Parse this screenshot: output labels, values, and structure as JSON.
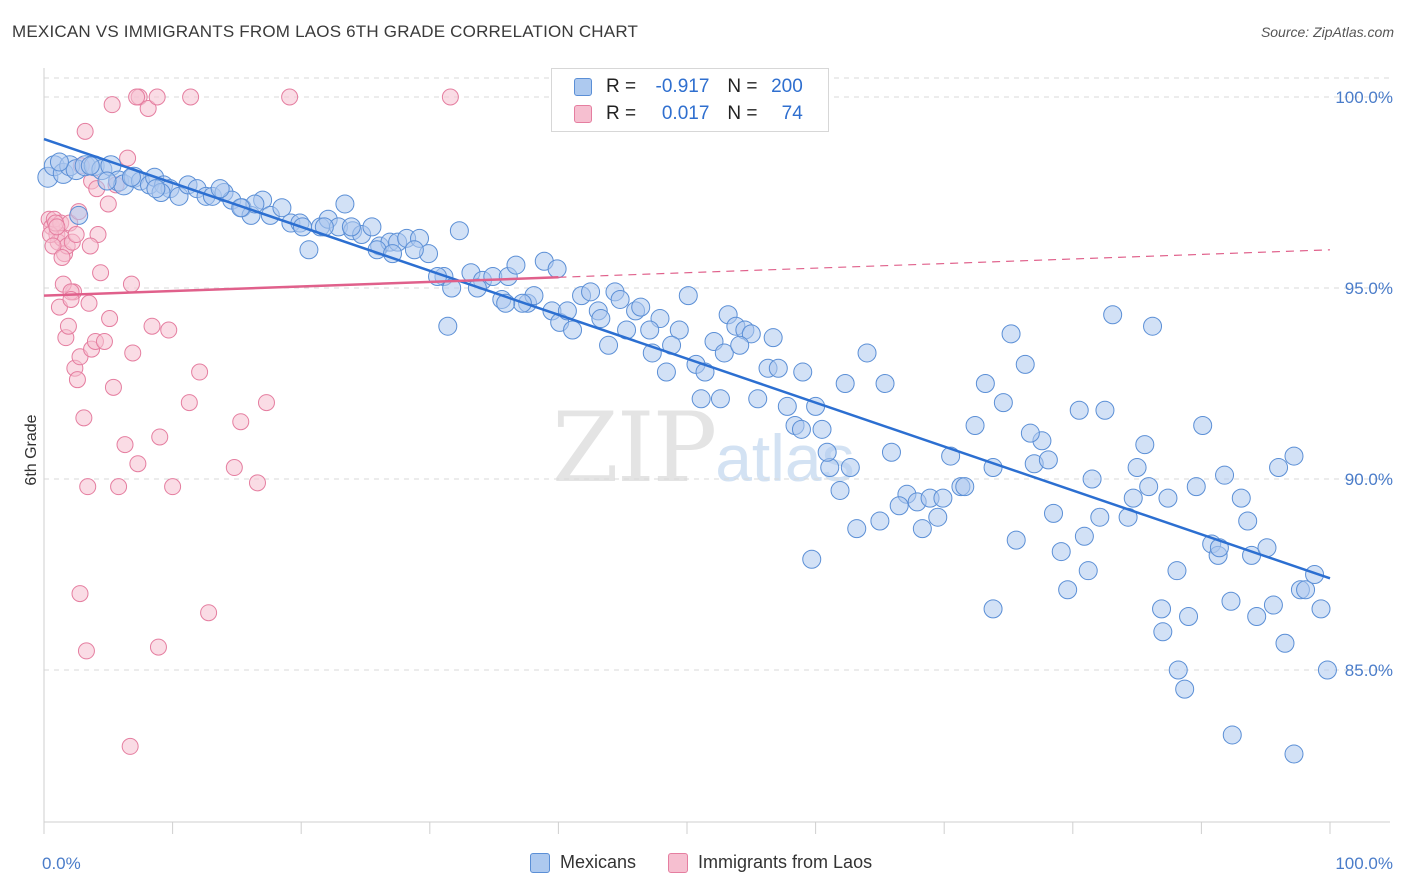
{
  "title": "MEXICAN VS IMMIGRANTS FROM LAOS 6TH GRADE CORRELATION CHART",
  "source": "Source: ZipAtlas.com",
  "watermark": {
    "zip": "ZIP",
    "atlas": "atlas"
  },
  "legend": {
    "r_label": "R =",
    "n_label": "N =",
    "rows": [
      {
        "r": "-0.917",
        "n": "200"
      },
      {
        "r": "0.017",
        "n": "74"
      }
    ]
  },
  "colors": {
    "blue_fill": "#adc9ef",
    "blue_stroke": "#5b8fd6",
    "blue_line": "#2c6fd1",
    "pink_fill": "#f6bfd0",
    "pink_stroke": "#e57ea0",
    "pink_line": "#e0608b",
    "axis_label": "#4a7cc9",
    "grid": "#d9d9d9"
  },
  "chart_data": {
    "type": "scatter",
    "title": "MEXICAN VS IMMIGRANTS FROM LAOS 6TH GRADE CORRELATION CHART",
    "xlabel": "",
    "ylabel": "6th Grade",
    "x_ticks": [
      "0.0%",
      "100.0%"
    ],
    "y_ticks": [
      "100.0%",
      "95.0%",
      "90.0%",
      "85.0%"
    ],
    "y_tick_values": [
      100,
      95,
      90,
      85
    ],
    "xlim": [
      0,
      100
    ],
    "ylim": [
      80.0,
      100.6
    ],
    "grid": true,
    "legend_position": "top-center",
    "series": [
      {
        "name": "Mexicans",
        "r": -0.917,
        "n": 200,
        "trend": {
          "x": [
            0,
            100
          ],
          "y": [
            98.9,
            87.4
          ]
        },
        "points": [
          [
            0.3,
            97.9
          ],
          [
            0.8,
            98.2
          ],
          [
            1.5,
            98.0
          ],
          [
            2.0,
            98.2
          ],
          [
            2.5,
            98.1
          ],
          [
            3.2,
            98.2
          ],
          [
            3.9,
            98.2
          ],
          [
            4.5,
            98.1
          ],
          [
            5.2,
            98.2
          ],
          [
            5.8,
            97.8
          ],
          [
            6.2,
            97.7
          ],
          [
            7.0,
            97.9
          ],
          [
            7.5,
            97.8
          ],
          [
            8.2,
            97.7
          ],
          [
            8.6,
            97.9
          ],
          [
            9.3,
            97.7
          ],
          [
            9.8,
            97.6
          ],
          [
            10.5,
            97.4
          ],
          [
            11.2,
            97.7
          ],
          [
            11.9,
            97.6
          ],
          [
            12.6,
            97.4
          ],
          [
            13.1,
            97.4
          ],
          [
            14.0,
            97.5
          ],
          [
            14.6,
            97.3
          ],
          [
            15.4,
            97.1
          ],
          [
            16.1,
            96.9
          ],
          [
            17.0,
            97.3
          ],
          [
            17.6,
            96.9
          ],
          [
            18.5,
            97.1
          ],
          [
            19.2,
            96.7
          ],
          [
            19.9,
            96.7
          ],
          [
            20.6,
            96.0
          ],
          [
            21.5,
            96.6
          ],
          [
            22.1,
            96.8
          ],
          [
            22.9,
            96.6
          ],
          [
            23.4,
            97.2
          ],
          [
            24.0,
            96.5
          ],
          [
            24.7,
            96.4
          ],
          [
            25.5,
            96.6
          ],
          [
            26.1,
            96.1
          ],
          [
            26.9,
            96.2
          ],
          [
            27.5,
            96.2
          ],
          [
            28.2,
            96.3
          ],
          [
            29.2,
            96.3
          ],
          [
            29.9,
            95.9
          ],
          [
            31.1,
            95.3
          ],
          [
            31.7,
            95.0
          ],
          [
            32.3,
            96.5
          ],
          [
            33.2,
            95.4
          ],
          [
            34.1,
            95.2
          ],
          [
            34.9,
            95.3
          ],
          [
            35.6,
            94.7
          ],
          [
            36.1,
            95.3
          ],
          [
            36.7,
            95.6
          ],
          [
            37.6,
            94.6
          ],
          [
            38.1,
            94.8
          ],
          [
            38.9,
            95.7
          ],
          [
            39.5,
            94.4
          ],
          [
            40.1,
            94.1
          ],
          [
            41.1,
            93.9
          ],
          [
            41.8,
            94.8
          ],
          [
            42.5,
            94.9
          ],
          [
            43.1,
            94.4
          ],
          [
            43.9,
            93.5
          ],
          [
            44.4,
            94.9
          ],
          [
            45.3,
            93.9
          ],
          [
            46.0,
            94.4
          ],
          [
            46.4,
            94.5
          ],
          [
            47.3,
            93.3
          ],
          [
            47.9,
            94.2
          ],
          [
            48.4,
            92.8
          ],
          [
            49.4,
            93.9
          ],
          [
            50.1,
            94.8
          ],
          [
            50.7,
            93.0
          ],
          [
            51.4,
            92.8
          ],
          [
            52.1,
            93.6
          ],
          [
            52.6,
            92.1
          ],
          [
            53.2,
            94.3
          ],
          [
            53.8,
            94.0
          ],
          [
            54.5,
            93.9
          ],
          [
            55.0,
            93.8
          ],
          [
            55.5,
            92.1
          ],
          [
            56.3,
            92.9
          ],
          [
            57.1,
            92.9
          ],
          [
            57.8,
            91.9
          ],
          [
            58.4,
            91.4
          ],
          [
            59.0,
            92.8
          ],
          [
            60.0,
            91.9
          ],
          [
            60.5,
            91.3
          ],
          [
            61.1,
            90.3
          ],
          [
            61.9,
            89.7
          ],
          [
            62.3,
            92.5
          ],
          [
            63.2,
            88.7
          ],
          [
            64.0,
            93.3
          ],
          [
            65.0,
            88.9
          ],
          [
            65.9,
            90.7
          ],
          [
            67.1,
            89.6
          ],
          [
            67.9,
            89.4
          ],
          [
            68.3,
            88.7
          ],
          [
            68.9,
            89.5
          ],
          [
            69.5,
            89.0
          ],
          [
            70.5,
            90.6
          ],
          [
            71.3,
            89.8
          ],
          [
            72.4,
            91.4
          ],
          [
            73.2,
            92.5
          ],
          [
            73.8,
            90.3
          ],
          [
            75.2,
            93.8
          ],
          [
            75.6,
            88.4
          ],
          [
            76.3,
            93.0
          ],
          [
            77.0,
            90.4
          ],
          [
            77.6,
            91.0
          ],
          [
            78.5,
            89.1
          ],
          [
            79.1,
            88.1
          ],
          [
            79.6,
            87.1
          ],
          [
            80.5,
            91.8
          ],
          [
            81.2,
            87.6
          ],
          [
            81.5,
            90.0
          ],
          [
            82.5,
            91.8
          ],
          [
            83.1,
            94.3
          ],
          [
            84.3,
            89.0
          ],
          [
            85.0,
            90.3
          ],
          [
            85.6,
            90.9
          ],
          [
            86.2,
            94.0
          ],
          [
            87.0,
            86.0
          ],
          [
            87.4,
            89.5
          ],
          [
            88.2,
            85.0
          ],
          [
            88.7,
            84.5
          ],
          [
            89.0,
            86.4
          ],
          [
            90.1,
            91.4
          ],
          [
            90.8,
            88.3
          ],
          [
            91.3,
            88.0
          ],
          [
            91.8,
            90.1
          ],
          [
            92.3,
            86.8
          ],
          [
            93.1,
            89.5
          ],
          [
            93.9,
            88.0
          ],
          [
            94.3,
            86.4
          ],
          [
            95.1,
            88.2
          ],
          [
            95.6,
            86.7
          ],
          [
            96.0,
            90.3
          ],
          [
            96.5,
            85.7
          ],
          [
            97.2,
            82.8
          ],
          [
            97.7,
            87.1
          ],
          [
            98.1,
            87.1
          ],
          [
            98.8,
            87.5
          ],
          [
            99.3,
            86.6
          ],
          [
            99.8,
            85.0
          ],
          [
            59.7,
            87.9
          ],
          [
            73.8,
            86.6
          ],
          [
            86.9,
            86.6
          ],
          [
            92.4,
            83.3
          ],
          [
            1.2,
            98.3
          ],
          [
            3.6,
            98.2
          ],
          [
            4.9,
            97.8
          ],
          [
            6.8,
            97.9
          ],
          [
            9.1,
            97.5
          ],
          [
            13.7,
            97.6
          ],
          [
            16.4,
            97.2
          ],
          [
            20.1,
            96.6
          ],
          [
            23.9,
            96.6
          ],
          [
            25.9,
            96.0
          ],
          [
            28.8,
            96.0
          ],
          [
            30.6,
            95.3
          ],
          [
            33.7,
            95.0
          ],
          [
            37.2,
            94.6
          ],
          [
            40.7,
            94.4
          ],
          [
            44.8,
            94.7
          ],
          [
            48.8,
            93.5
          ],
          [
            52.9,
            93.3
          ],
          [
            56.7,
            93.7
          ],
          [
            60.9,
            90.7
          ],
          [
            65.4,
            92.5
          ],
          [
            69.9,
            89.5
          ],
          [
            74.6,
            92.0
          ],
          [
            78.1,
            90.5
          ],
          [
            82.1,
            89.0
          ],
          [
            85.9,
            89.8
          ],
          [
            89.6,
            89.8
          ],
          [
            93.6,
            88.9
          ],
          [
            97.2,
            90.6
          ],
          [
            2.7,
            96.9
          ],
          [
            8.7,
            97.6
          ],
          [
            15.3,
            97.1
          ],
          [
            21.8,
            96.6
          ],
          [
            27.1,
            95.9
          ],
          [
            31.4,
            94.0
          ],
          [
            35.9,
            94.6
          ],
          [
            39.9,
            95.5
          ],
          [
            43.3,
            94.2
          ],
          [
            47.1,
            93.9
          ],
          [
            51.1,
            92.1
          ],
          [
            54.1,
            93.5
          ],
          [
            58.9,
            91.3
          ],
          [
            62.7,
            90.3
          ],
          [
            66.5,
            89.3
          ],
          [
            71.6,
            89.8
          ],
          [
            76.7,
            91.2
          ],
          [
            80.9,
            88.5
          ],
          [
            84.7,
            89.5
          ],
          [
            88.1,
            87.6
          ],
          [
            91.4,
            88.2
          ]
        ]
      },
      {
        "name": "Immigrants from Laos",
        "r": 0.017,
        "n": 74,
        "trend": {
          "x": [
            0,
            100
          ],
          "y": [
            94.8,
            96.0
          ]
        },
        "points": [
          [
            0.4,
            96.8
          ],
          [
            0.6,
            96.6
          ],
          [
            0.8,
            96.8
          ],
          [
            1.0,
            96.4
          ],
          [
            1.1,
            96.2
          ],
          [
            1.3,
            96.7
          ],
          [
            1.4,
            96.3
          ],
          [
            1.6,
            95.9
          ],
          [
            1.8,
            96.1
          ],
          [
            2.0,
            96.7
          ],
          [
            2.2,
            96.2
          ],
          [
            2.3,
            94.9
          ],
          [
            2.5,
            96.4
          ],
          [
            0.5,
            96.4
          ],
          [
            0.7,
            96.1
          ],
          [
            0.9,
            96.7
          ],
          [
            1.2,
            94.5
          ],
          [
            1.5,
            95.1
          ],
          [
            1.7,
            93.7
          ],
          [
            1.9,
            94.0
          ],
          [
            2.1,
            94.9
          ],
          [
            2.4,
            92.9
          ],
          [
            2.6,
            92.6
          ],
          [
            2.8,
            93.2
          ],
          [
            3.1,
            91.6
          ],
          [
            3.4,
            89.8
          ],
          [
            3.7,
            93.4
          ],
          [
            4.0,
            93.6
          ],
          [
            4.4,
            95.4
          ],
          [
            4.7,
            93.6
          ],
          [
            5.1,
            94.2
          ],
          [
            5.4,
            92.4
          ],
          [
            5.8,
            89.8
          ],
          [
            6.3,
            90.9
          ],
          [
            6.9,
            93.3
          ],
          [
            7.3,
            90.4
          ],
          [
            8.4,
            94.0
          ],
          [
            9.0,
            91.1
          ],
          [
            10.0,
            89.8
          ],
          [
            11.3,
            92.0
          ],
          [
            12.1,
            92.8
          ],
          [
            14.8,
            90.3
          ],
          [
            15.3,
            91.5
          ],
          [
            16.6,
            89.9
          ],
          [
            3.2,
            99.1
          ],
          [
            5.3,
            99.8
          ],
          [
            7.4,
            100.0
          ],
          [
            8.1,
            99.7
          ],
          [
            8.8,
            100.0
          ],
          [
            11.4,
            100.0
          ],
          [
            2.9,
            98.2
          ],
          [
            3.7,
            97.8
          ],
          [
            4.1,
            97.6
          ],
          [
            5.0,
            97.2
          ],
          [
            6.5,
            98.4
          ],
          [
            4.2,
            96.4
          ],
          [
            3.6,
            96.1
          ],
          [
            2.7,
            97.0
          ],
          [
            6.8,
            95.1
          ],
          [
            7.2,
            100.0
          ],
          [
            1.0,
            96.6
          ],
          [
            1.4,
            95.8
          ],
          [
            2.1,
            94.7
          ],
          [
            3.5,
            94.6
          ],
          [
            5.6,
            97.7
          ],
          [
            9.7,
            93.9
          ],
          [
            12.8,
            86.5
          ],
          [
            17.3,
            92.0
          ],
          [
            2.8,
            87.0
          ],
          [
            3.3,
            85.5
          ],
          [
            8.9,
            85.6
          ],
          [
            6.7,
            83.0
          ],
          [
            19.1,
            100.0
          ],
          [
            31.6,
            100.0
          ]
        ]
      }
    ]
  }
}
